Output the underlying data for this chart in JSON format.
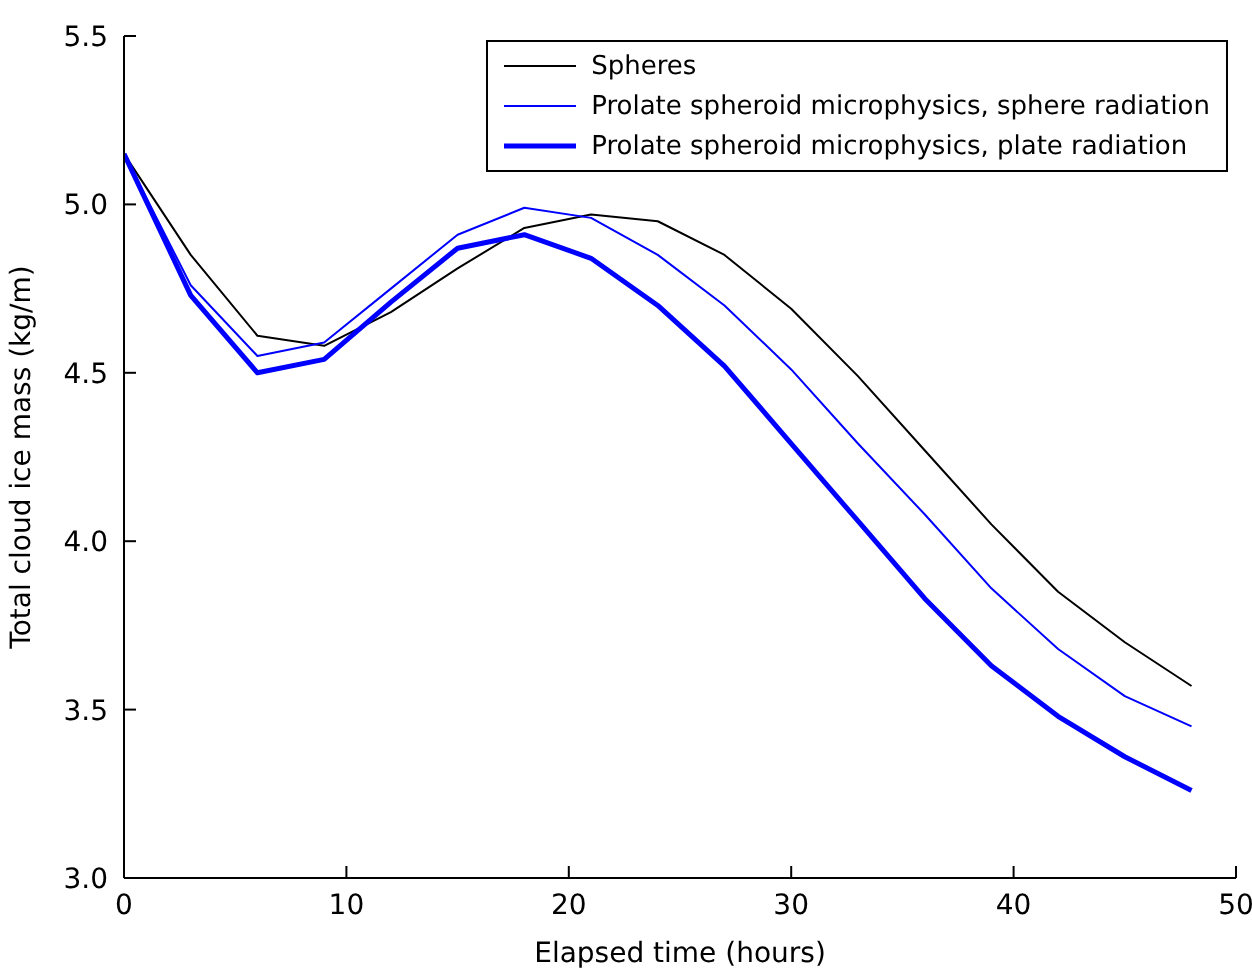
{
  "chart_data": {
    "type": "line",
    "xlabel": "Elapsed time (hours)",
    "ylabel": "Total cloud ice mass (kg/m)",
    "x": [
      0,
      3,
      6,
      9,
      12,
      15,
      18,
      21,
      24,
      27,
      30,
      33,
      36,
      39,
      42,
      45,
      48
    ],
    "series": [
      {
        "name": "Spheres",
        "color": "#000000",
        "values": [
          5.15,
          4.85,
          4.61,
          4.58,
          4.68,
          4.81,
          4.93,
          4.97,
          4.95,
          4.85,
          4.69,
          4.49,
          4.27,
          4.05,
          3.85,
          3.7,
          3.57
        ]
      },
      {
        "name": "Prolate spheroid microphysics, sphere radiation",
        "color": "#0000ff",
        "values": [
          5.15,
          4.76,
          4.55,
          4.59,
          4.75,
          4.91,
          4.99,
          4.96,
          4.85,
          4.7,
          4.51,
          4.29,
          4.08,
          3.86,
          3.68,
          3.54,
          3.45
        ]
      },
      {
        "name": "Prolate spheroid microphysics, plate radiation",
        "color": "#0000ff",
        "values": [
          5.15,
          4.73,
          4.5,
          4.54,
          4.71,
          4.87,
          4.91,
          4.84,
          4.7,
          4.52,
          4.29,
          4.06,
          3.83,
          3.63,
          3.48,
          3.36,
          3.26
        ]
      }
    ],
    "xlim": [
      0,
      50
    ],
    "xticks": [
      0,
      10,
      20,
      30,
      40,
      50
    ],
    "ylim": [
      3.0,
      5.5
    ],
    "yticks": [
      {
        "value": 3.0,
        "label": "3.0"
      },
      {
        "value": 3.5,
        "label": "3.5"
      },
      {
        "value": 4.0,
        "label": "4.0"
      },
      {
        "value": 4.5,
        "label": "4.5"
      },
      {
        "value": 5.0,
        "label": "5.0"
      },
      {
        "value": 5.5,
        "label": "5.5"
      }
    ],
    "grid": false,
    "legend": "top right",
    "marker": "none",
    "line_style": "solid"
  }
}
